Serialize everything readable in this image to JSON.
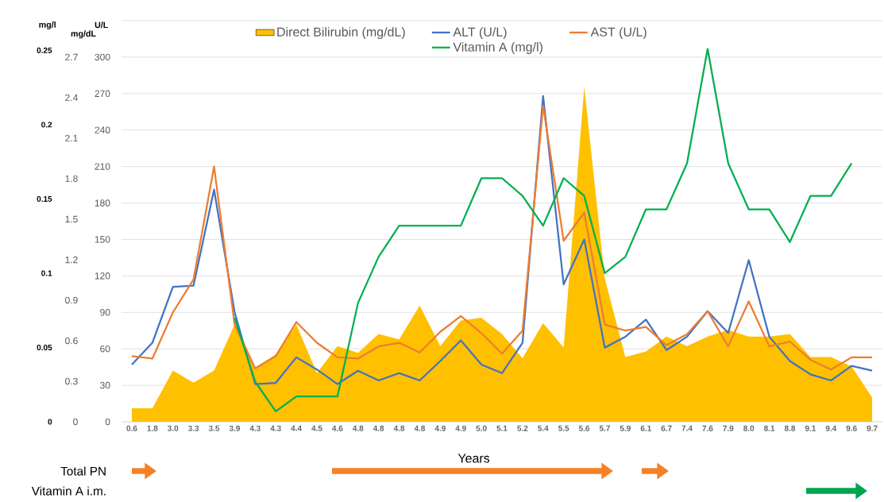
{
  "chart_data": {
    "type": "line",
    "categories": [
      "0.6",
      "1.8",
      "3.0",
      "3.3",
      "3.5",
      "3.9",
      "4.3",
      "4.3",
      "4.4",
      "4.5",
      "4.6",
      "4.8",
      "4.8",
      "4.8",
      "4.8",
      "4.9",
      "4.9",
      "5.0",
      "5.1",
      "5.2",
      "5.4",
      "5.5",
      "5.6",
      "5.7",
      "5.9",
      "6.1",
      "6.7",
      "7.4",
      "7.6",
      "7.9",
      "8.0",
      "8.1",
      "8.8",
      "9.1",
      "9.4",
      "9.6",
      "9.7"
    ],
    "xlabel": "Years",
    "ylabel": "U/L",
    "y2label": "mg/dL",
    "y3label": "mg/l",
    "ylim": [
      0,
      330
    ],
    "yticks": [
      0,
      30,
      60,
      90,
      120,
      150,
      180,
      210,
      240,
      270,
      300
    ],
    "y2lim": [
      0,
      2.97
    ],
    "y2ticks": [
      0,
      0.3,
      0.6,
      0.9,
      1.2,
      1.5,
      1.8,
      2.1,
      2.4,
      2.7
    ],
    "y3lim": [
      0,
      0.27
    ],
    "y3ticks": [
      0,
      0.05,
      0.1,
      0.15,
      0.2,
      0.25
    ],
    "grid": "y",
    "legend": "top",
    "series": [
      {
        "name": "Direct Bilirubin (mg/dL)",
        "type": "area",
        "axis": "y2",
        "color": "#ffc000",
        "values": [
          0.1,
          0.1,
          0.38,
          0.29,
          0.38,
          0.72,
          0.4,
          0.5,
          0.72,
          0.36,
          0.56,
          0.51,
          0.65,
          0.61,
          0.86,
          0.56,
          0.75,
          0.77,
          0.65,
          0.47,
          0.73,
          0.55,
          2.48,
          1.06,
          0.48,
          0.52,
          0.63,
          0.56,
          0.63,
          0.68,
          0.63,
          0.63,
          0.65,
          0.48,
          0.48,
          0.41,
          0.18
        ]
      },
      {
        "name": "ALT (U/L)",
        "color": "#4472c4",
        "values": [
          47,
          65,
          111,
          112,
          191,
          90,
          31,
          32,
          53,
          43,
          31,
          42,
          34,
          40,
          34,
          50,
          67,
          47,
          40,
          65,
          268,
          113,
          150,
          61,
          70,
          84,
          59,
          70,
          91,
          73,
          133,
          70,
          50,
          39,
          34,
          46,
          42
        ]
      },
      {
        "name": "AST (U/L)",
        "color": "#ed7d31",
        "values": [
          54,
          52,
          90,
          117,
          210,
          80,
          44,
          54,
          82,
          65,
          53,
          52,
          62,
          65,
          57,
          74,
          87,
          73,
          56,
          75,
          260,
          149,
          172,
          80,
          75,
          78,
          63,
          72,
          91,
          62,
          99,
          62,
          66,
          51,
          43,
          53,
          53
        ]
      },
      {
        "name": "Vitamin A (mg/l)",
        "type": "line",
        "axis": "y3",
        "color": "#00b050",
        "values": [
          null,
          null,
          null,
          null,
          null,
          0.07,
          0.027,
          0.007,
          0.017,
          0.017,
          0.017,
          0.08,
          0.111,
          0.132,
          0.132,
          0.132,
          0.132,
          0.164,
          0.164,
          0.152,
          0.132,
          0.164,
          0.152,
          0.1,
          0.111,
          0.143,
          0.143,
          0.174,
          0.251,
          0.174,
          0.143,
          0.143,
          0.121,
          0.152,
          0.152,
          0.174,
          null
        ]
      }
    ],
    "annotations": [
      "Total PN",
      "Vitamin A i.m."
    ]
  }
}
